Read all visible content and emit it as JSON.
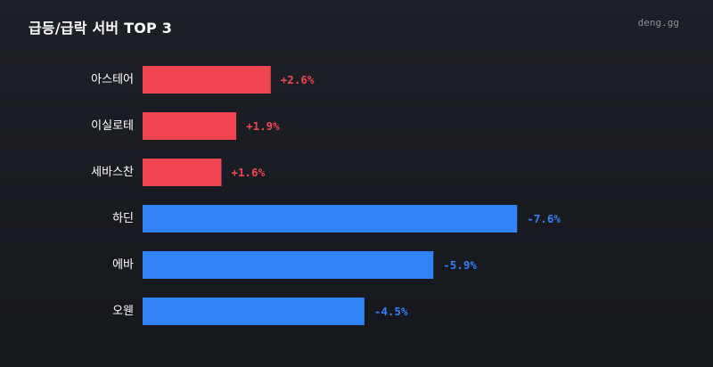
{
  "title": "급등/급락 서버 TOP 3",
  "brand": "deng.gg",
  "colors": {
    "up": "#f04452",
    "down": "#3182f6"
  },
  "chart_data": {
    "type": "bar",
    "orientation": "horizontal",
    "categories": [
      "아스테어",
      "이실로테",
      "세바스찬",
      "하딘",
      "에바",
      "오웬"
    ],
    "values": [
      2.6,
      1.9,
      1.6,
      -7.6,
      -5.9,
      -4.5
    ],
    "value_labels": [
      "+2.6%",
      "+1.9%",
      "+1.6%",
      "-7.6%",
      "-5.9%",
      "-4.5%"
    ],
    "title": "급등/급락 서버 TOP 3",
    "xlabel": "",
    "ylabel": "",
    "grid": false,
    "legend": "none"
  }
}
